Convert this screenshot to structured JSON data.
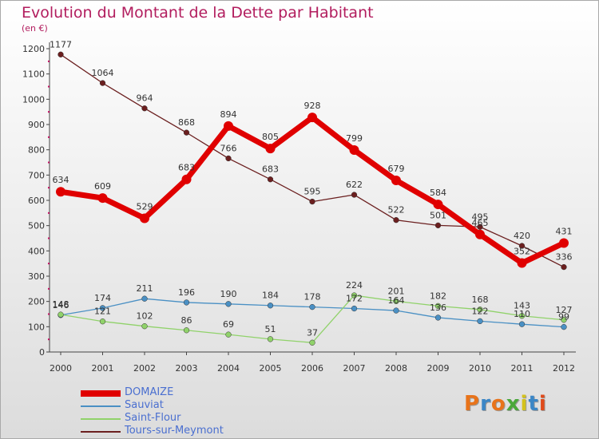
{
  "title": "Evolution du Montant de la Dette par Habitant",
  "subtitle": "(en €)",
  "brand": {
    "text": "Proxiti",
    "letter_colors": [
      "#e8731a",
      "#3b86c6",
      "#e8731a",
      "#4aa83a",
      "#d4c21c",
      "#3b86c6",
      "#e04a1a"
    ]
  },
  "chart_data": {
    "type": "line",
    "title": "Evolution du Montant de la Dette par Habitant",
    "subtitle": "(en €)",
    "xlabel": "",
    "ylabel": "",
    "x": [
      "2000",
      "2001",
      "2002",
      "2003",
      "2004",
      "2005",
      "2006",
      "2007",
      "2008",
      "2009",
      "2010",
      "2011",
      "2012"
    ],
    "ylim": [
      0,
      1200
    ],
    "yticks": [
      "0",
      "100",
      "200",
      "300",
      "400",
      "500",
      "600",
      "700",
      "800",
      "900",
      "1000",
      "1100",
      "1200"
    ],
    "grid": false,
    "legend_position": "bottom-left",
    "series": [
      {
        "name": "Tours-sur-Meymont",
        "color": "#6b1f1f",
        "values": [
          1177,
          1064,
          964,
          868,
          766,
          683,
          595,
          622,
          522,
          501,
          495,
          420,
          336
        ],
        "labels": [
          "1177",
          "1064",
          "964",
          "868",
          "766",
          "683",
          "595",
          "622",
          "522",
          "501",
          "495",
          "420",
          "336"
        ]
      },
      {
        "name": "Sauviat",
        "color": "#4a90c4",
        "values": [
          146,
          174,
          211,
          196,
          190,
          184,
          178,
          172,
          164,
          136,
          122,
          110,
          99
        ],
        "labels": [
          "146",
          "174",
          "211",
          "196",
          "190",
          "184",
          "178",
          "172",
          "164",
          "136",
          "122",
          "110",
          "99"
        ]
      },
      {
        "name": "Saint-Flour",
        "color": "#90d26a",
        "values": [
          148,
          121,
          102,
          86,
          69,
          51,
          37,
          224,
          201,
          182,
          168,
          143,
          127
        ],
        "labels": [
          "148",
          "121",
          "102",
          "86",
          "69",
          "51",
          "37",
          "224",
          "201",
          "182",
          "168",
          "143",
          "127"
        ]
      },
      {
        "name": "DOMAIZE",
        "color": "#e00000",
        "values": [
          634,
          609,
          529,
          683,
          894,
          805,
          928,
          799,
          679,
          584,
          465,
          352,
          431
        ],
        "labels": [
          "634",
          "609",
          "529",
          "683",
          "894",
          "805",
          "928",
          "799",
          "679",
          "584",
          "465",
          "352",
          "431"
        ]
      }
    ],
    "legend": [
      {
        "name": "DOMAIZE",
        "color": "#e00000",
        "width": 8,
        "text_color": "#4a6fd0"
      },
      {
        "name": "Sauviat",
        "color": "#4a90c4",
        "width": 2,
        "text_color": "#4a6fd0"
      },
      {
        "name": "Saint-Flour",
        "color": "#90d26a",
        "width": 2,
        "text_color": "#4a6fd0"
      },
      {
        "name": "Tours-sur-Meymont",
        "color": "#6b1f1f",
        "width": 2,
        "text_color": "#4a6fd0"
      }
    ]
  }
}
